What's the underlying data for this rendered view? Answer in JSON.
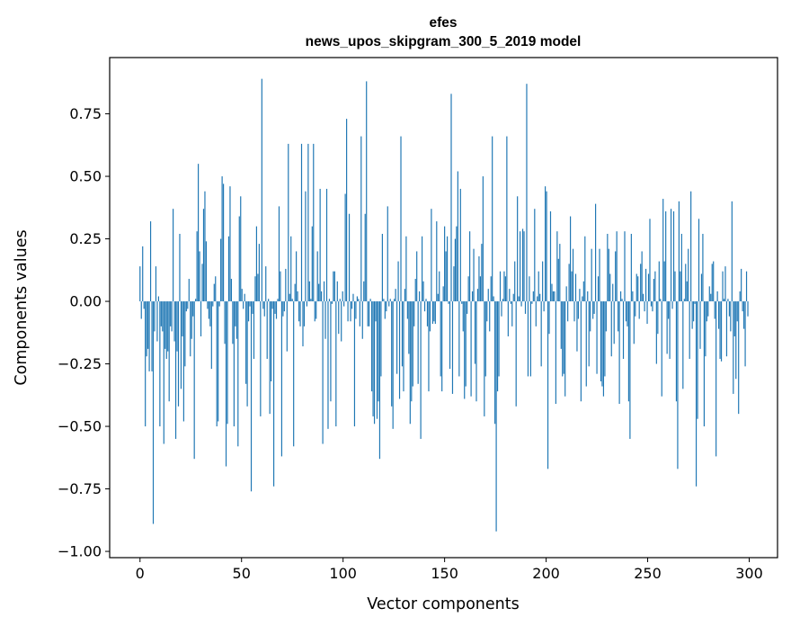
{
  "chart_data": {
    "type": "bar",
    "title": "efes",
    "subtitle": "news_upos_skipgram_300_5_2019 model",
    "xlabel": "Vector components",
    "ylabel": "Components values",
    "xlim": [
      -14.95,
      313.95
    ],
    "ylim": [
      -1.025,
      0.975
    ],
    "xticks": [
      0,
      50,
      100,
      150,
      200,
      250,
      300
    ],
    "xtick_labels": [
      "0",
      "50",
      "100",
      "150",
      "200",
      "250",
      "300"
    ],
    "yticks": [
      -1.0,
      -0.75,
      -0.5,
      -0.25,
      0.0,
      0.25,
      0.5,
      0.75
    ],
    "ytick_labels": [
      "−1.00",
      "−0.75",
      "−0.50",
      "−0.25",
      "0.00",
      "0.25",
      "0.50",
      "0.75"
    ],
    "bar_color": "#1f77b4",
    "values": [
      0.14,
      -0.07,
      0.22,
      -0.03,
      -0.5,
      -0.22,
      -0.19,
      -0.28,
      0.32,
      -0.28,
      -0.89,
      -0.12,
      0.14,
      -0.16,
      0.02,
      -0.5,
      -0.1,
      -0.12,
      -0.57,
      -0.19,
      -0.23,
      -0.2,
      -0.4,
      -0.1,
      -0.12,
      0.37,
      -0.16,
      -0.55,
      -0.2,
      -0.42,
      0.27,
      -0.35,
      -0.14,
      -0.48,
      -0.26,
      -0.04,
      -0.03,
      0.09,
      -0.22,
      -0.15,
      -0.06,
      -0.63,
      0.01,
      0.28,
      0.55,
      0.2,
      -0.14,
      0.15,
      0.37,
      0.44,
      0.24,
      -0.03,
      -0.07,
      -0.1,
      -0.27,
      -0.02,
      0.07,
      0.1,
      -0.5,
      -0.48,
      -0.02,
      0.25,
      0.5,
      0.47,
      -0.17,
      -0.66,
      -0.49,
      0.26,
      0.46,
      0.09,
      -0.17,
      -0.5,
      -0.1,
      -0.15,
      -0.58,
      0.34,
      0.42,
      0.05,
      -0.03,
      0.03,
      -0.33,
      -0.42,
      -0.08,
      -0.02,
      -0.76,
      -0.05,
      -0.23,
      0.1,
      0.3,
      0.11,
      0.23,
      -0.46,
      0.89,
      -0.03,
      -0.06,
      0.14,
      -0.23,
      0.01,
      -0.45,
      -0.32,
      -0.03,
      -0.74,
      -0.05,
      -0.07,
      0.01,
      0.38,
      0.12,
      -0.62,
      -0.06,
      -0.04,
      0.13,
      -0.2,
      0.63,
      0.03,
      0.26,
      0.01,
      -0.58,
      0.07,
      0.2,
      0.04,
      -0.08,
      -0.1,
      0.63,
      -0.18,
      -0.1,
      0.44,
      -0.02,
      0.63,
      0.08,
      0.01,
      0.3,
      0.63,
      -0.08,
      -0.07,
      0.2,
      0.07,
      0.45,
      0.04,
      -0.57,
      0.08,
      -0.15,
      0.45,
      -0.51,
      0.01,
      -0.4,
      -0.01,
      0.12,
      0.12,
      -0.5,
      0.08,
      -0.13,
      0.01,
      -0.16,
      0.04,
      -0.02,
      0.43,
      0.73,
      -0.08,
      0.35,
      -0.08,
      -0.03,
      0.03,
      -0.5,
      -0.07,
      0.02,
      0.01,
      -0.1,
      0.66,
      -0.15,
      0.08,
      0.35,
      0.88,
      -0.1,
      -0.1,
      0.01,
      -0.36,
      -0.46,
      -0.49,
      -0.08,
      -0.47,
      -0.4,
      -0.63,
      -0.3,
      0.27,
      0.01,
      -0.07,
      -0.04,
      0.38,
      -0.02,
      0.01,
      -0.42,
      -0.51,
      0.01,
      0.05,
      -0.29,
      0.16,
      -0.39,
      0.66,
      -0.26,
      -0.36,
      0.05,
      0.26,
      -0.07,
      -0.21,
      -0.49,
      -0.4,
      -0.34,
      -0.1,
      0.09,
      0.2,
      -0.33,
      0.04,
      -0.55,
      0.26,
      0.08,
      -0.04,
      0.01,
      -0.1,
      -0.36,
      -0.12,
      0.37,
      -0.09,
      -0.08,
      -0.09,
      0.32,
      0.03,
      0.12,
      -0.3,
      -0.36,
      0.06,
      0.3,
      0.2,
      0.26,
      -0.01,
      -0.27,
      0.83,
      -0.37,
      0.14,
      0.25,
      0.3,
      0.52,
      -0.3,
      0.45,
      -0.01,
      -0.12,
      -0.39,
      -0.34,
      -0.05,
      0.1,
      0.28,
      -0.38,
      0.04,
      0.21,
      -0.25,
      -0.4,
      0.05,
      0.18,
      0.1,
      0.23,
      0.5,
      -0.46,
      -0.3,
      -0.08,
      0.05,
      -0.12,
      0.1,
      0.66,
      0.02,
      -0.49,
      -0.92,
      -0.36,
      -0.3,
      0.12,
      -0.06,
      0.01,
      0.12,
      0.1,
      0.66,
      -0.14,
      0.05,
      -0.01,
      -0.1,
      0.03,
      0.16,
      -0.42,
      0.42,
      0.02,
      0.28,
      -0.02,
      0.29,
      0.28,
      -0.05,
      0.87,
      -0.3,
      0.1,
      -0.3,
      -0.01,
      0.04,
      0.37,
      -0.1,
      0.02,
      0.12,
      0.03,
      -0.26,
      0.16,
      -0.04,
      0.46,
      0.44,
      -0.67,
      -0.13,
      0.36,
      0.07,
      0.04,
      0.04,
      -0.41,
      0.28,
      0.17,
      0.23,
      -0.19,
      -0.3,
      -0.29,
      -0.38,
      0.06,
      -0.08,
      0.15,
      0.34,
      0.12,
      0.21,
      -0.08,
      0.11,
      -0.2,
      -0.07,
      0.05,
      -0.4,
      0.02,
      0.08,
      0.26,
      -0.34,
      0.04,
      -0.26,
      -0.12,
      0.21,
      -0.07,
      -0.05,
      0.39,
      -0.29,
      0.1,
      0.21,
      -0.32,
      -0.34,
      -0.38,
      -0.3,
      -0.12,
      0.27,
      0.21,
      0.11,
      -0.22,
      0.07,
      -0.17,
      0.2,
      0.28,
      -0.12,
      -0.41,
      0.04,
      0.01,
      -0.23,
      0.28,
      -0.08,
      -0.1,
      -0.4,
      -0.55,
      0.27,
      0.04,
      -0.17,
      -0.06,
      0.11,
      0.1,
      -0.07,
      0.15,
      0.2,
      0.03,
      -0.04,
      0.13,
      -0.09,
      0.11,
      0.33,
      -0.02,
      -0.04,
      0.09,
      0.12,
      -0.25,
      -0.13,
      0.16,
      0.01,
      -0.38,
      0.41,
      0.16,
      0.36,
      -0.21,
      -0.07,
      -0.23,
      0.37,
      -0.03,
      0.36,
      0.12,
      -0.4,
      -0.67,
      0.4,
      0.12,
      0.27,
      -0.35,
      0.01,
      0.15,
      0.08,
      0.21,
      -0.23,
      0.44,
      -0.11,
      -0.08,
      -0.01,
      -0.74,
      -0.47,
      0.33,
      -0.19,
      0.11,
      0.27,
      -0.5,
      -0.22,
      -0.08,
      -0.06,
      0.06,
      0.03,
      0.15,
      0.16,
      -0.07,
      -0.62,
      0.04,
      -0.11,
      -0.23,
      -0.24,
      0.12,
      0.01,
      0.14,
      -0.22,
      0.01,
      -0.06,
      -0.12,
      0.4,
      -0.37,
      -0.14,
      -0.31,
      -0.08,
      -0.45,
      0.04,
      0.13,
      -0.04,
      -0.11,
      -0.26,
      0.12,
      -0.06
    ]
  }
}
